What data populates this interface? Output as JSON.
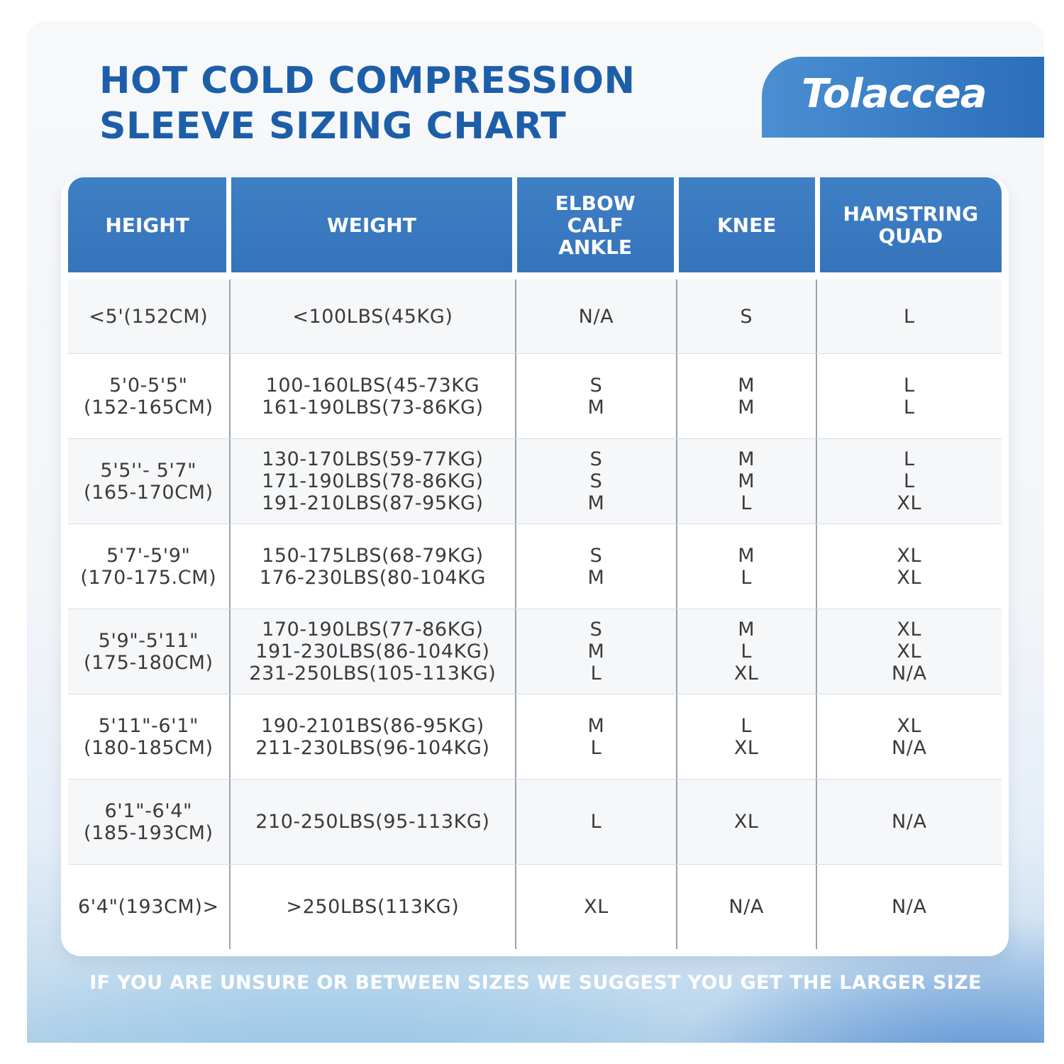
{
  "title": {
    "line1": "HOT COLD COMPRESSION",
    "line2": "SLEEVE SIZING CHART"
  },
  "brand": {
    "name": "Tolaccea"
  },
  "colors": {
    "accent": "#3574bb",
    "title": "#1d5ea8",
    "text": "#3a3a3a"
  },
  "table": {
    "headers": [
      "HEIGHT",
      "WEIGHT",
      "ELBOW\nCALF\nANKLE",
      "KNEE",
      "HAMSTRING\nQUAD"
    ],
    "rows": [
      [
        "<5'(152CM)",
        "<100LBS(45KG)",
        "N/A",
        "S",
        "L"
      ],
      [
        "5'0-5'5\"\n(152-165CM)",
        "100-160LBS(45-73KG\n161-190LBS(73-86KG)",
        "S\nM",
        "M\nM",
        "L\nL"
      ],
      [
        "5'5''- 5'7\"\n(165-170CM)",
        "130-170LBS(59-77KG)\n171-190LBS(78-86KG)\n191-210LBS(87-95KG)",
        "S\nS\nM",
        "M\nM\nL",
        "L\nL\nXL"
      ],
      [
        "5'7'-5'9\"\n(170-175.CM)",
        "150-175LBS(68-79KG)\n176-230LBS(80-104KG",
        "S\nM",
        "M\nL",
        "XL\nXL"
      ],
      [
        "5'9\"-5'11\"\n(175-180CM)",
        "170-190LBS(77-86KG)\n191-230LBS(86-104KG)\n231-250LBS(105-113KG)",
        "S\nM\nL",
        "M\nL\nXL",
        "XL\nXL\nN/A"
      ],
      [
        "5'11\"-6'1\"\n(180-185CM)",
        "190-2101BS(86-95KG)\n211-230LBS(96-104KG)",
        "M\nL",
        "L\nXL",
        "XL\nN/A"
      ],
      [
        "6'1\"-6'4\"\n(185-193CM)",
        "210-250LBS(95-113KG)",
        "L",
        "XL",
        "N/A"
      ],
      [
        "6'4\"(193CM)>",
        ">250LBS(113KG)",
        "XL",
        "N/A",
        "N/A"
      ]
    ]
  },
  "footer": {
    "note": "IF YOU ARE UNSURE OR BETWEEN SIZES WE SUGGEST YOU GET THE LARGER SIZE"
  }
}
